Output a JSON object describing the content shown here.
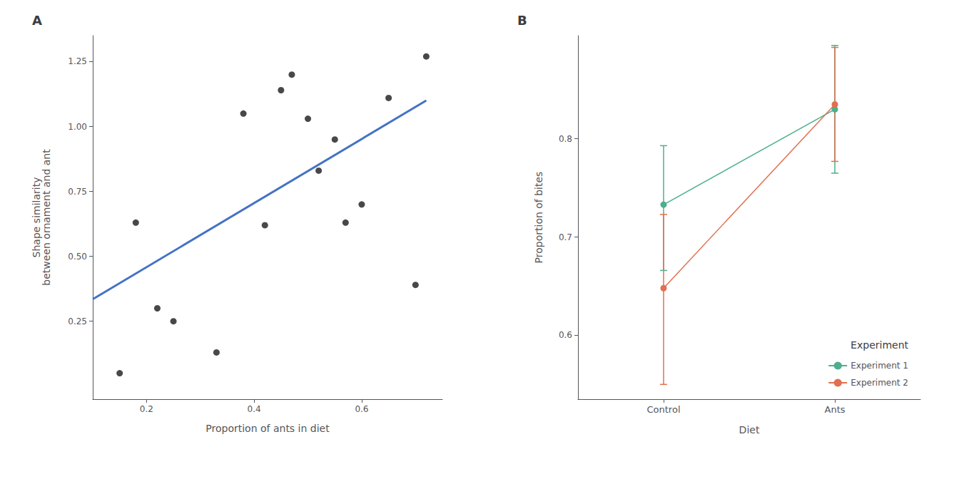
{
  "chart_data": [
    {
      "type": "scatter",
      "title": "A",
      "xlabel": "Proportion of ants in diet",
      "ylabel": "Shape similarity\nbetween ornament and ant",
      "series": [
        {
          "type": "scatter",
          "color": "#1a1a1a",
          "marker": "circle",
          "x": [
            0.15,
            0.18,
            0.22,
            0.25,
            0.33,
            0.38,
            0.42,
            0.45,
            0.47,
            0.5,
            0.52,
            0.55,
            0.57,
            0.6,
            0.65,
            0.7,
            0.72
          ],
          "values": [
            0.05,
            0.63,
            0.3,
            0.25,
            0.13,
            1.05,
            0.62,
            1.14,
            1.2,
            1.03,
            0.83,
            0.95,
            0.63,
            0.7,
            1.11,
            0.39,
            1.27
          ]
        },
        {
          "type": "line",
          "color": "#4472C4",
          "x": [
            0.1,
            0.72
          ],
          "values": [
            0.335,
            1.1
          ]
        }
      ],
      "xlim": [
        0.1,
        0.75
      ],
      "ylim": [
        -0.05,
        1.35
      ],
      "xticks": [
        0.2,
        0.4,
        0.6
      ],
      "yticks": [
        0.25,
        {
          "value": 0.5,
          "label": "0.50"
        },
        0.75,
        {
          "value": 1,
          "label": "1.00"
        },
        1.25
      ],
      "grid": false
    },
    {
      "type": "line",
      "title": "B",
      "xlabel": "Diet",
      "ylabel": "Proportion of bites",
      "categories": [
        "Control",
        "Ants"
      ],
      "series": [
        {
          "name": "Experiment 1",
          "color": "#4DAF8D",
          "marker": "circle",
          "values": [
            0.733,
            0.83
          ],
          "error_low": [
            0.067,
            0.065
          ],
          "error_high": [
            0.06,
            0.065
          ]
        },
        {
          "name": "Experiment 2",
          "color": "#E07050",
          "marker": "circle",
          "values": [
            0.648,
            0.835
          ],
          "error_low": [
            0.098,
            0.058
          ],
          "error_high": [
            0.075,
            0.058
          ]
        }
      ],
      "ylim": [
        0.535,
        0.905
      ],
      "yticks": [
        0.6,
        0.7,
        0.8
      ],
      "legend": "lower right",
      "legend_title": "Experiment",
      "grid": false
    }
  ]
}
